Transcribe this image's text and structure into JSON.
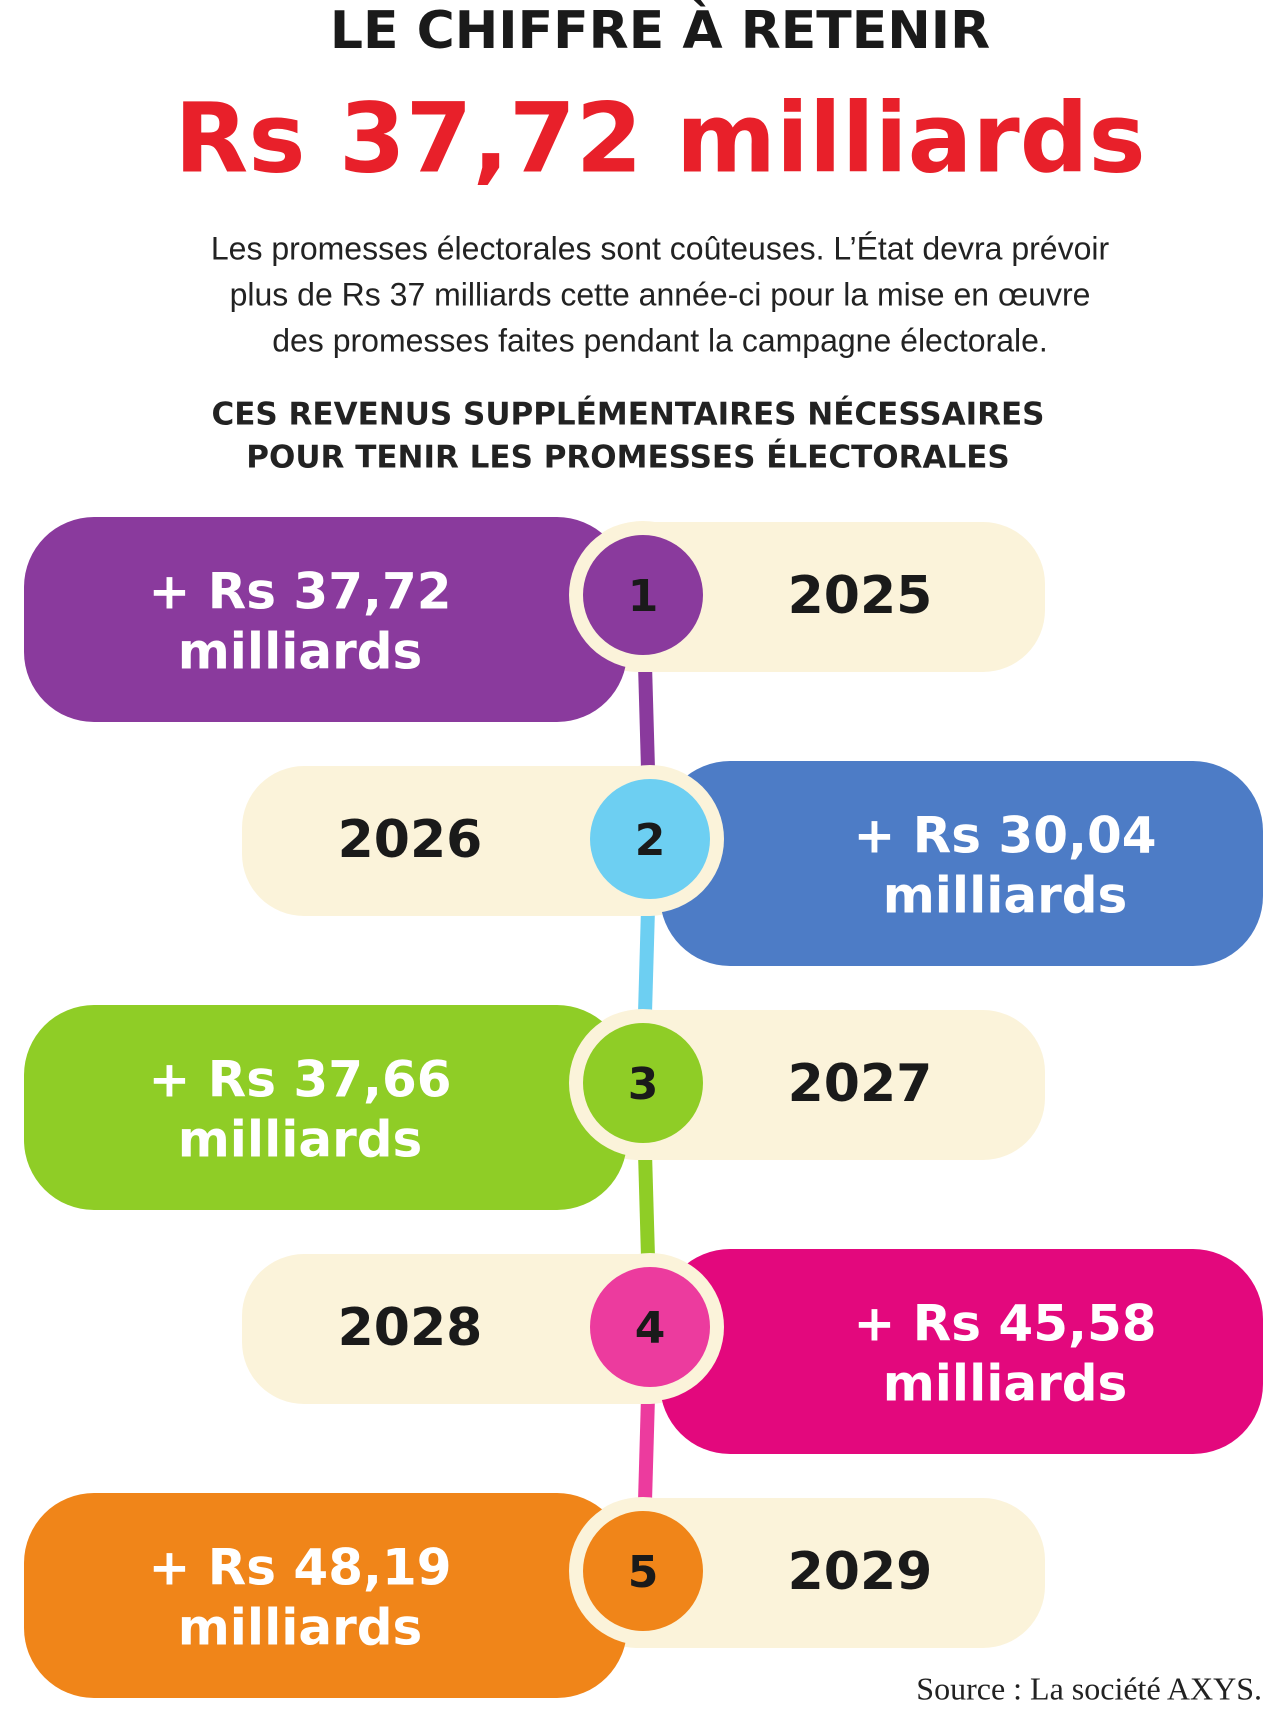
{
  "header": {
    "kicker": "LE CHIFFRE À RETENIR",
    "headline": "Rs 37,72 milliards",
    "intro": [
      "Les promesses électorales sont coûteuses. L’État devra prévoir",
      "plus de Rs 37 milliards cette année-ci pour la mise en œuvre",
      "des promesses faites pendant la campagne électorale."
    ]
  },
  "section_title": [
    "CES REVENUS SUPPLÉMENTAIRES NÉCESSAIRES",
    "POUR TENIR LES PROMESSES ÉLECTORALES"
  ],
  "items": [
    {
      "number": "1",
      "year": "2025",
      "amount": [
        "+ Rs 37,72",
        "milliards"
      ],
      "color": "#8a3a9d",
      "circle_color": "#8a3a9d"
    },
    {
      "number": "2",
      "year": "2026",
      "amount": [
        "+ Rs 30,04",
        "milliards"
      ],
      "color": "#4d7cc6",
      "circle_color": "#6dcff2"
    },
    {
      "number": "3",
      "year": "2027",
      "amount": [
        "+ Rs 37,66",
        "milliards"
      ],
      "color": "#8fcd26",
      "circle_color": "#8fcd26"
    },
    {
      "number": "4",
      "year": "2028",
      "amount": [
        "+ Rs 45,58",
        "milliards"
      ],
      "color": "#e3087d",
      "circle_color": "#ec3b9e"
    },
    {
      "number": "5",
      "year": "2029",
      "amount": [
        "+ Rs 48,19",
        "milliards"
      ],
      "color": "#f08519",
      "circle_color": "#f08519"
    }
  ],
  "source": "Source : La société AXYS."
}
